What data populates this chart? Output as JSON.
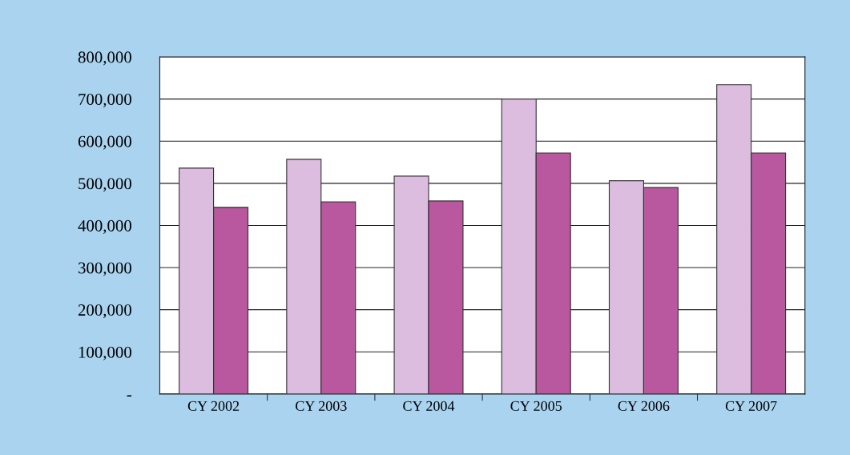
{
  "chart_data": {
    "type": "bar",
    "categories": [
      "CY 2002",
      "CY 2003",
      "CY 2004",
      "CY 2005",
      "CY 2006",
      "CY 2007"
    ],
    "series": [
      {
        "color": "#dcbde0",
        "values": [
          536000,
          557000,
          517000,
          700000,
          506000,
          734000
        ]
      },
      {
        "color": "#b9579f",
        "values": [
          443000,
          456000,
          458000,
          572000,
          490000,
          572000
        ]
      }
    ],
    "ylim": [
      0,
      800000
    ],
    "yticks": [
      {
        "value": 0,
        "label": "-"
      },
      {
        "value": 100000,
        "label": "100,000"
      },
      {
        "value": 200000,
        "label": "200,000"
      },
      {
        "value": 300000,
        "label": "300,000"
      },
      {
        "value": 400000,
        "label": "400,000"
      },
      {
        "value": 500000,
        "label": "500,000"
      },
      {
        "value": 600000,
        "label": "600,000"
      },
      {
        "value": 700000,
        "label": "700,000"
      },
      {
        "value": 800000,
        "label": "800,000"
      }
    ],
    "grid": "y"
  }
}
